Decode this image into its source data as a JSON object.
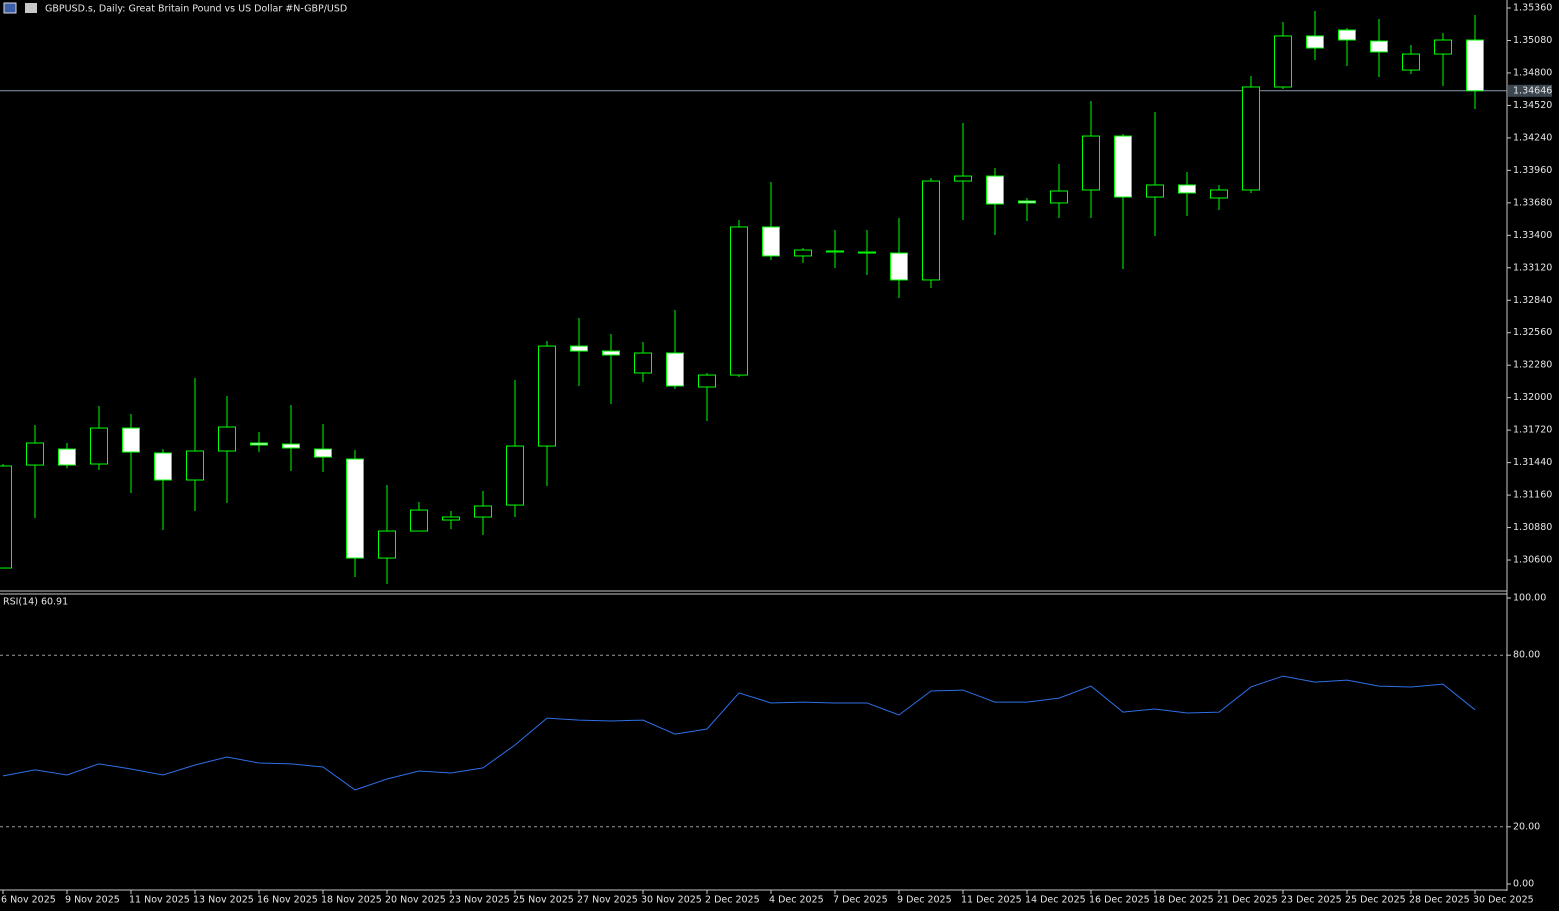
{
  "header": {
    "symbol_title": "GBPUSD.s, Daily:  Great Britain Pound vs US Dollar #N-GBP/USD"
  },
  "chart_data": [
    {
      "type": "candlestick",
      "title": "GBPUSD.s, Daily:  Great Britain Pound vs US Dollar #N-GBP/USD",
      "categories": [
        "6 Nov 2025",
        null,
        "9 Nov 2025",
        null,
        "11 Nov 2025",
        null,
        "13 Nov 2025",
        null,
        "16 Nov 2025",
        null,
        "18 Nov 2025",
        null,
        "20 Nov 2025",
        null,
        "23 Nov 2025",
        null,
        "25 Nov 2025",
        null,
        "27 Nov 2025",
        null,
        "30 Nov 2025",
        null,
        "2 Dec 2025",
        null,
        "4 Dec 2025",
        null,
        "7 Dec 2025",
        null,
        "9 Dec 2025",
        null,
        "11 Dec 2025",
        null,
        "14 Dec 2025",
        null,
        "16 Dec 2025",
        null,
        "18 Dec 2025",
        null,
        "21 Dec 2025",
        null,
        "23 Dec 2025",
        null,
        "25 Dec 2025",
        null,
        "28 Dec 2025",
        null,
        "30 Dec 2025"
      ],
      "open": [
        1.30531,
        1.31419,
        1.31557,
        1.31428,
        1.31738,
        1.31523,
        1.3129,
        1.3154,
        1.31609,
        1.316,
        1.31557,
        1.31471,
        1.30617,
        1.3085,
        1.30945,
        1.30971,
        1.31074,
        1.31583,
        1.32445,
        1.32402,
        1.32213,
        1.32385,
        1.32092,
        1.32195,
        1.33472,
        1.33222,
        1.33256,
        1.33247,
        1.33247,
        1.33015,
        1.33868,
        1.33911,
        1.33696,
        1.33679,
        1.33791,
        1.34256,
        1.3373,
        1.33834,
        1.33722,
        1.33791,
        1.34679,
        1.35119,
        1.3517,
        1.35075,
        1.34825,
        1.34963,
        1.35084
      ],
      "high": [
        1.31428,
        1.31764,
        1.31609,
        1.31928,
        1.31859,
        1.31557,
        1.3217,
        1.32014,
        1.31704,
        1.31937,
        1.31773,
        1.31549,
        1.31247,
        1.311,
        1.31023,
        1.31195,
        1.32152,
        1.32489,
        1.32687,
        1.32549,
        1.3248,
        1.32756,
        1.32213,
        1.33532,
        1.3386,
        1.33291,
        1.33446,
        1.33446,
        1.33549,
        1.33894,
        1.34368,
        1.3398,
        1.33722,
        1.34015,
        1.34558,
        1.34274,
        1.34463,
        1.33946,
        1.33834,
        1.34774,
        1.35239,
        1.35334,
        1.35188,
        1.35265,
        1.35041,
        1.35144,
        1.353
      ],
      "low": [
        1.30531,
        1.30962,
        1.31393,
        1.31376,
        1.31178,
        1.30859,
        1.31023,
        1.31092,
        1.31531,
        1.31368,
        1.31359,
        1.30454,
        1.30393,
        1.3085,
        1.30867,
        1.30816,
        1.30971,
        1.31238,
        1.32101,
        1.31945,
        1.32135,
        1.32075,
        1.31799,
        1.32178,
        1.33187,
        1.33161,
        1.33118,
        1.33058,
        1.32859,
        1.32946,
        1.33532,
        1.33403,
        1.33523,
        1.33549,
        1.33549,
        1.3311,
        1.33394,
        1.33566,
        1.33618,
        1.33765,
        1.34662,
        1.34912,
        1.3486,
        1.34765,
        1.34791,
        1.34687,
        1.34489
      ],
      "close": [
        1.31411,
        1.31609,
        1.31419,
        1.31738,
        1.31531,
        1.3129,
        1.3154,
        1.31747,
        1.31592,
        1.31566,
        1.31488,
        1.30617,
        1.3085,
        1.31031,
        1.30971,
        1.31066,
        1.31583,
        1.32445,
        1.32402,
        1.32368,
        1.32385,
        1.32101,
        1.32195,
        1.33472,
        1.33222,
        1.33273,
        1.33265,
        1.33256,
        1.33015,
        1.33868,
        1.33911,
        1.3367,
        1.33679,
        1.33782,
        1.34256,
        1.3373,
        1.33834,
        1.33765,
        1.33791,
        1.34679,
        1.35119,
        1.35015,
        1.35084,
        1.34981,
        1.34963,
        1.35084,
        1.34646
      ],
      "up_color": "#000000",
      "down_color": "#ffffff",
      "outline_color": "#00ff00",
      "last_price": {
        "value": 1.34646,
        "label": "1.34646"
      },
      "ylim": [
        1.30333,
        1.35429
      ],
      "yticks": [
        {
          "value": 1.3536,
          "label": "1.35360"
        },
        {
          "value": 1.3508,
          "label": "1.35080"
        },
        {
          "value": 1.348,
          "label": "1.34800"
        },
        {
          "value": 1.3452,
          "label": "1.34520"
        },
        {
          "value": 1.3424,
          "label": "1.34240"
        },
        {
          "value": 1.3396,
          "label": "1.33960"
        },
        {
          "value": 1.3368,
          "label": "1.33680"
        },
        {
          "value": 1.334,
          "label": "1.33400"
        },
        {
          "value": 1.3312,
          "label": "1.33120"
        },
        {
          "value": 1.3284,
          "label": "1.32840"
        },
        {
          "value": 1.3256,
          "label": "1.32560"
        },
        {
          "value": 1.3228,
          "label": "1.32280"
        },
        {
          "value": 1.32,
          "label": "1.32000"
        },
        {
          "value": 1.3172,
          "label": "1.31720"
        },
        {
          "value": 1.3144,
          "label": "1.31440"
        },
        {
          "value": 1.3116,
          "label": "1.31160"
        },
        {
          "value": 1.3088,
          "label": "1.30880"
        },
        {
          "value": 1.306,
          "label": "1.30600"
        }
      ],
      "grid": false
    },
    {
      "type": "line",
      "title": "RSI(14) 60.91",
      "series": [
        {
          "name": "RSI(14)",
          "color": "#2f6fe8",
          "values": [
            37.8,
            39.9,
            38.1,
            42.0,
            40.2,
            38.1,
            41.6,
            44.4,
            42.3,
            42.0,
            40.9,
            32.9,
            36.7,
            39.5,
            38.8,
            40.6,
            48.6,
            58.0,
            57.3,
            57.0,
            57.3,
            52.4,
            54.2,
            66.8,
            63.3,
            63.6,
            63.3,
            63.3,
            59.1,
            67.5,
            67.8,
            63.6,
            63.6,
            65.0,
            69.2,
            60.1,
            61.2,
            59.8,
            60.1,
            68.9,
            72.7,
            70.6,
            71.3,
            69.2,
            68.9,
            69.9,
            60.9
          ]
        }
      ],
      "ylim": [
        -2.1,
        101.4
      ],
      "yticks": [
        {
          "value": 100,
          "label": "100.00"
        },
        {
          "value": 80,
          "label": "80.00"
        },
        {
          "value": 20,
          "label": "20.00"
        },
        {
          "value": 0,
          "label": "0.00"
        }
      ],
      "level_color": "#9a9a9a"
    }
  ]
}
